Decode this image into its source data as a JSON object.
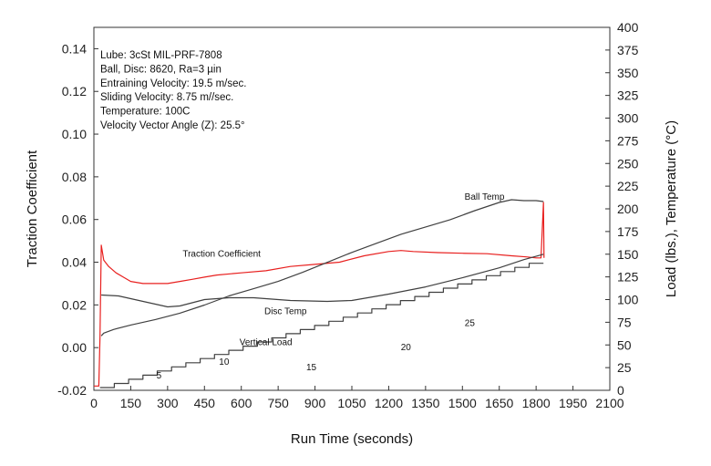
{
  "chart_data": {
    "type": "line",
    "xlabel": "Run Time (seconds)",
    "ylabel_left": "Traction Coefficient",
    "ylabel_right": "Load (lbs.), Temperature (°C)",
    "xlim": [
      0,
      2100
    ],
    "ylim_left": [
      -0.02,
      0.15
    ],
    "ylim_right": [
      0,
      400
    ],
    "x_ticks": [
      0,
      150,
      300,
      450,
      600,
      750,
      900,
      1050,
      1200,
      1350,
      1500,
      1650,
      1800,
      1950,
      2100
    ],
    "y_left_ticks": [
      "-0.02",
      "0.00",
      "0.02",
      "0.04",
      "0.06",
      "0.08",
      "0.10",
      "0.12",
      "0.14"
    ],
    "y_right_ticks": [
      0,
      25,
      50,
      75,
      100,
      125,
      150,
      175,
      200,
      225,
      250,
      275,
      300,
      325,
      350,
      375,
      400
    ],
    "grid": false,
    "info_lines": [
      "Lube: 3cSt MIL-PRF-7808",
      "Ball, Disc:  8620, Ra=3  µin",
      "Entraining Velocity:  19.5  m/sec.",
      "Sliding Velocity:  8.75 m//sec.",
      "Temperature:  100C",
      "Velocity Vector Angle (Z):  25.5°"
    ],
    "series": [
      {
        "name": "Traction Coefficient",
        "axis": "left",
        "color": "#e8201f",
        "x": [
          0,
          20,
          25,
          30,
          40,
          60,
          90,
          120,
          150,
          200,
          250,
          300,
          350,
          400,
          450,
          500,
          600,
          700,
          800,
          900,
          1000,
          1100,
          1200,
          1250,
          1300,
          1400,
          1500,
          1600,
          1700,
          1760,
          1800,
          1820,
          1830,
          1832
        ],
        "y": [
          -0.018,
          -0.018,
          0.005,
          0.048,
          0.041,
          0.038,
          0.035,
          0.033,
          0.031,
          0.03,
          0.03,
          0.03,
          0.031,
          0.032,
          0.033,
          0.034,
          0.035,
          0.036,
          0.038,
          0.039,
          0.04,
          0.043,
          0.045,
          0.0455,
          0.045,
          0.0445,
          0.0442,
          0.044,
          0.043,
          0.0425,
          0.042,
          0.042,
          0.068,
          0.042
        ],
        "label_text": "Traction Coefficient"
      },
      {
        "name": "Ball Temp",
        "axis": "right",
        "color": "#404040",
        "x": [
          30,
          40,
          80,
          150,
          250,
          350,
          450,
          550,
          650,
          750,
          850,
          950,
          1050,
          1150,
          1250,
          1350,
          1450,
          1550,
          1650,
          1700,
          1750,
          1800,
          1830
        ],
        "y": [
          60,
          63,
          67,
          72,
          78,
          85,
          94,
          104,
          112,
          120,
          130,
          141,
          152,
          162,
          172,
          180,
          188,
          198,
          207,
          210,
          209,
          209,
          208
        ],
        "label_text": "Ball Temp"
      },
      {
        "name": "Disc Temp",
        "axis": "right",
        "color": "#404040",
        "x": [
          30,
          100,
          200,
          300,
          350,
          450,
          550,
          650,
          800,
          950,
          1050,
          1200,
          1350,
          1500,
          1650,
          1750,
          1830
        ],
        "y": [
          105,
          104,
          98,
          92,
          93,
          100,
          102,
          102,
          99,
          98,
          99,
          106,
          114,
          124,
          135,
          144,
          150
        ],
        "label_text": "Disc Temp"
      },
      {
        "name": "Vertical Load",
        "axis": "right",
        "color": "#404040",
        "step_start": 25,
        "step_end": 1830,
        "step_count": 31,
        "y_start": 3,
        "y_end": 140,
        "label_text": "Vertical Load",
        "step_labels": [
          {
            "text": "5",
            "x": 265,
            "y": 13
          },
          {
            "text": "10",
            "x": 530,
            "y": 28
          },
          {
            "text": "15",
            "x": 885,
            "y": 22
          },
          {
            "text": "20",
            "x": 1270,
            "y": 44
          },
          {
            "text": "25",
            "x": 1530,
            "y": 71
          }
        ]
      }
    ],
    "annotations": [
      {
        "series": "Traction Coefficient",
        "x": 520,
        "y": 0.0425
      },
      {
        "series": "Ball Temp",
        "x": 1590,
        "y": 210
      },
      {
        "series": "Disc Temp",
        "x": 780,
        "y": 84
      },
      {
        "series": "Vertical Load",
        "x": 700,
        "y": 50
      }
    ]
  }
}
